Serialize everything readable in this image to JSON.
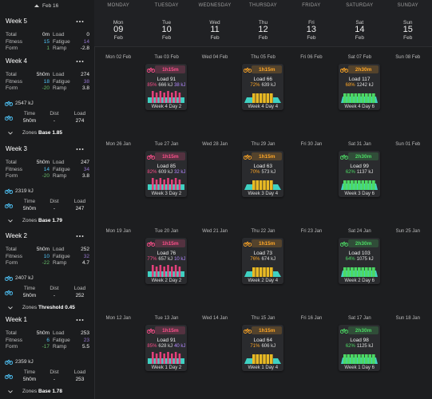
{
  "sidebar": {
    "top_label": "Feb 16",
    "weeks": [
      {
        "title": "Week 5",
        "stats": [
          {
            "label": "Total",
            "value": "0m"
          },
          {
            "label": "Load",
            "value": "0"
          },
          {
            "label": "Fitness",
            "value": "15"
          },
          {
            "label": "Fatigue",
            "value": "14"
          },
          {
            "label": "Form",
            "value": "1"
          },
          {
            "label": "Ramp",
            "value": "-2.8"
          }
        ]
      },
      {
        "title": "Week 4",
        "stats": [
          {
            "label": "Total",
            "value": "5h0m"
          },
          {
            "label": "Load",
            "value": "274"
          },
          {
            "label": "Fitness",
            "value": "18"
          },
          {
            "label": "Fatigue",
            "value": "38"
          },
          {
            "label": "Form",
            "value": "-20"
          },
          {
            "label": "Ramp",
            "value": "3.8"
          }
        ],
        "work": "2547 kJ",
        "summary": {
          "headers": [
            "Time",
            "Dist",
            "Load"
          ],
          "values": [
            "5h0m",
            "-",
            "274"
          ]
        },
        "zones_label": "Zones",
        "zones_value": "Base 1.85"
      },
      {
        "title": "Week 3",
        "stats": [
          {
            "label": "Total",
            "value": "5h0m"
          },
          {
            "label": "Load",
            "value": "247"
          },
          {
            "label": "Fitness",
            "value": "14"
          },
          {
            "label": "Fatigue",
            "value": "34"
          },
          {
            "label": "Form",
            "value": "-20"
          },
          {
            "label": "Ramp",
            "value": "3.8"
          }
        ],
        "work": "2319 kJ",
        "summary": {
          "headers": [
            "Time",
            "Dist",
            "Load"
          ],
          "values": [
            "5h0m",
            "-",
            "247"
          ]
        },
        "zones_label": "Zones",
        "zones_value": "Base 1.79"
      },
      {
        "title": "Week 2",
        "stats": [
          {
            "label": "Total",
            "value": "5h0m"
          },
          {
            "label": "Load",
            "value": "252"
          },
          {
            "label": "Fitness",
            "value": "10"
          },
          {
            "label": "Fatigue",
            "value": "32"
          },
          {
            "label": "Form",
            "value": "-22"
          },
          {
            "label": "Ramp",
            "value": "4.7"
          }
        ],
        "work": "2407 kJ",
        "summary": {
          "headers": [
            "Time",
            "Dist",
            "Load"
          ],
          "values": [
            "5h0m",
            "-",
            "252"
          ]
        },
        "zones_label": "Zones",
        "zones_value": "Threshold 0.45"
      },
      {
        "title": "Week 1",
        "stats": [
          {
            "label": "Total",
            "value": "5h0m"
          },
          {
            "label": "Load",
            "value": "253"
          },
          {
            "label": "Fitness",
            "value": "6"
          },
          {
            "label": "Fatigue",
            "value": "23"
          },
          {
            "label": "Form",
            "value": "-17"
          },
          {
            "label": "Ramp",
            "value": "5.5"
          }
        ],
        "work": "2359 kJ",
        "summary": {
          "headers": [
            "Time",
            "Dist",
            "Load"
          ],
          "values": [
            "5h0m",
            "-",
            "253"
          ]
        },
        "zones_label": "Zones",
        "zones_value": "Base 1.78"
      }
    ]
  },
  "calendar": {
    "header": [
      {
        "name": "MONDAY",
        "dow": "Mon",
        "day": "09",
        "month": "Feb"
      },
      {
        "name": "TUESDAY",
        "dow": "Tue",
        "day": "10",
        "month": "Feb"
      },
      {
        "name": "WEDNESDAY",
        "dow": "Wed",
        "day": "11",
        "month": "Feb"
      },
      {
        "name": "THURSDAY",
        "dow": "Thu",
        "day": "12",
        "month": "Feb"
      },
      {
        "name": "FRIDAY",
        "dow": "Fri",
        "day": "13",
        "month": "Feb"
      },
      {
        "name": "SATURDAY",
        "dow": "Sat",
        "day": "14",
        "month": "Feb"
      },
      {
        "name": "SUNDAY",
        "dow": "Sun",
        "day": "15",
        "month": "Feb"
      }
    ],
    "rows": [
      {
        "days": [
          {
            "date": "Mon 02 Feb"
          },
          {
            "date": "Tue 03 Feb",
            "workout": {
              "duration": "1h15m",
              "load": "Load 91",
              "intensity": "85%",
              "work": "666 kJ",
              "extra": "38 kJ",
              "name": "Week 4 Day 2",
              "color": "#ff4f8b"
            }
          },
          {
            "date": "Wed 04 Feb"
          },
          {
            "date": "Thu 05 Feb",
            "workout": {
              "duration": "1h15m",
              "load": "Load 66",
              "intensity": "72%",
              "work": "639 kJ",
              "name": "Week 4 Day 4",
              "color": "#ffa726"
            }
          },
          {
            "date": "Fri 06 Feb"
          },
          {
            "date": "Sat 07 Feb",
            "workout": {
              "duration": "2h30m",
              "load": "Load 117",
              "intensity": "68%",
              "work": "1242 kJ",
              "name": "Week 4 Day 6",
              "color": "#ffa726"
            }
          },
          {
            "date": "Sun 08 Feb"
          }
        ]
      },
      {
        "days": [
          {
            "date": "Mon 26 Jan"
          },
          {
            "date": "Tue 27 Jan",
            "workout": {
              "duration": "1h15m",
              "load": "Load 85",
              "intensity": "82%",
              "work": "609 kJ",
              "extra": "32 kJ",
              "name": "Week 3 Day 2",
              "color": "#ff4f8b"
            }
          },
          {
            "date": "Wed 28 Jan"
          },
          {
            "date": "Thu 29 Jan",
            "workout": {
              "duration": "1h15m",
              "load": "Load 63",
              "intensity": "70%",
              "work": "573 kJ",
              "name": "Week 3 Day 4",
              "color": "#ffa726"
            }
          },
          {
            "date": "Fri 30 Jan"
          },
          {
            "date": "Sat 31 Jan",
            "workout": {
              "duration": "2h30m",
              "load": "Load 99",
              "intensity": "62%",
              "work": "1137 kJ",
              "name": "Week 3 Day 6",
              "color": "#4cd964"
            }
          },
          {
            "date": "Sun 01 Feb"
          }
        ]
      },
      {
        "days": [
          {
            "date": "Mon 19 Jan"
          },
          {
            "date": "Tue 20 Jan",
            "workout": {
              "duration": "1h15m",
              "load": "Load 76",
              "intensity": "77%",
              "work": "657 kJ",
              "extra": "10 kJ",
              "name": "Week 2 Day 2",
              "color": "#ff4f8b"
            }
          },
          {
            "date": "Wed 21 Jan"
          },
          {
            "date": "Thu 22 Jan",
            "workout": {
              "duration": "1h15m",
              "load": "Load 73",
              "intensity": "76%",
              "work": "674 kJ",
              "name": "Week 2 Day 4",
              "color": "#ffa726"
            }
          },
          {
            "date": "Fri 23 Jan"
          },
          {
            "date": "Sat 24 Jan",
            "workout": {
              "duration": "2h30m",
              "load": "Load 103",
              "intensity": "64%",
              "work": "1075 kJ",
              "name": "Week 2 Day 6",
              "color": "#4cd964"
            }
          },
          {
            "date": "Sun 25 Jan"
          }
        ]
      },
      {
        "days": [
          {
            "date": "Mon 12 Jan"
          },
          {
            "date": "Tue 13 Jan",
            "workout": {
              "duration": "1h15m",
              "load": "Load 91",
              "intensity": "85%",
              "work": "628 kJ",
              "extra": "40 kJ",
              "name": "Week 1 Day 2",
              "color": "#ff4f8b"
            }
          },
          {
            "date": "Wed 14 Jan"
          },
          {
            "date": "Thu 15 Jan",
            "workout": {
              "duration": "1h15m",
              "load": "Load 64",
              "intensity": "71%",
              "work": "606 kJ",
              "name": "Week 1 Day 4",
              "color": "#ffa726"
            }
          },
          {
            "date": "Fri 16 Jan"
          },
          {
            "date": "Sat 17 Jan",
            "workout": {
              "duration": "2h30m",
              "load": "Load 98",
              "intensity": "62%",
              "work": "1125 kJ",
              "name": "Week 1 Day 6",
              "color": "#4cd964"
            }
          },
          {
            "date": "Sun 18 Jan"
          }
        ]
      }
    ]
  }
}
